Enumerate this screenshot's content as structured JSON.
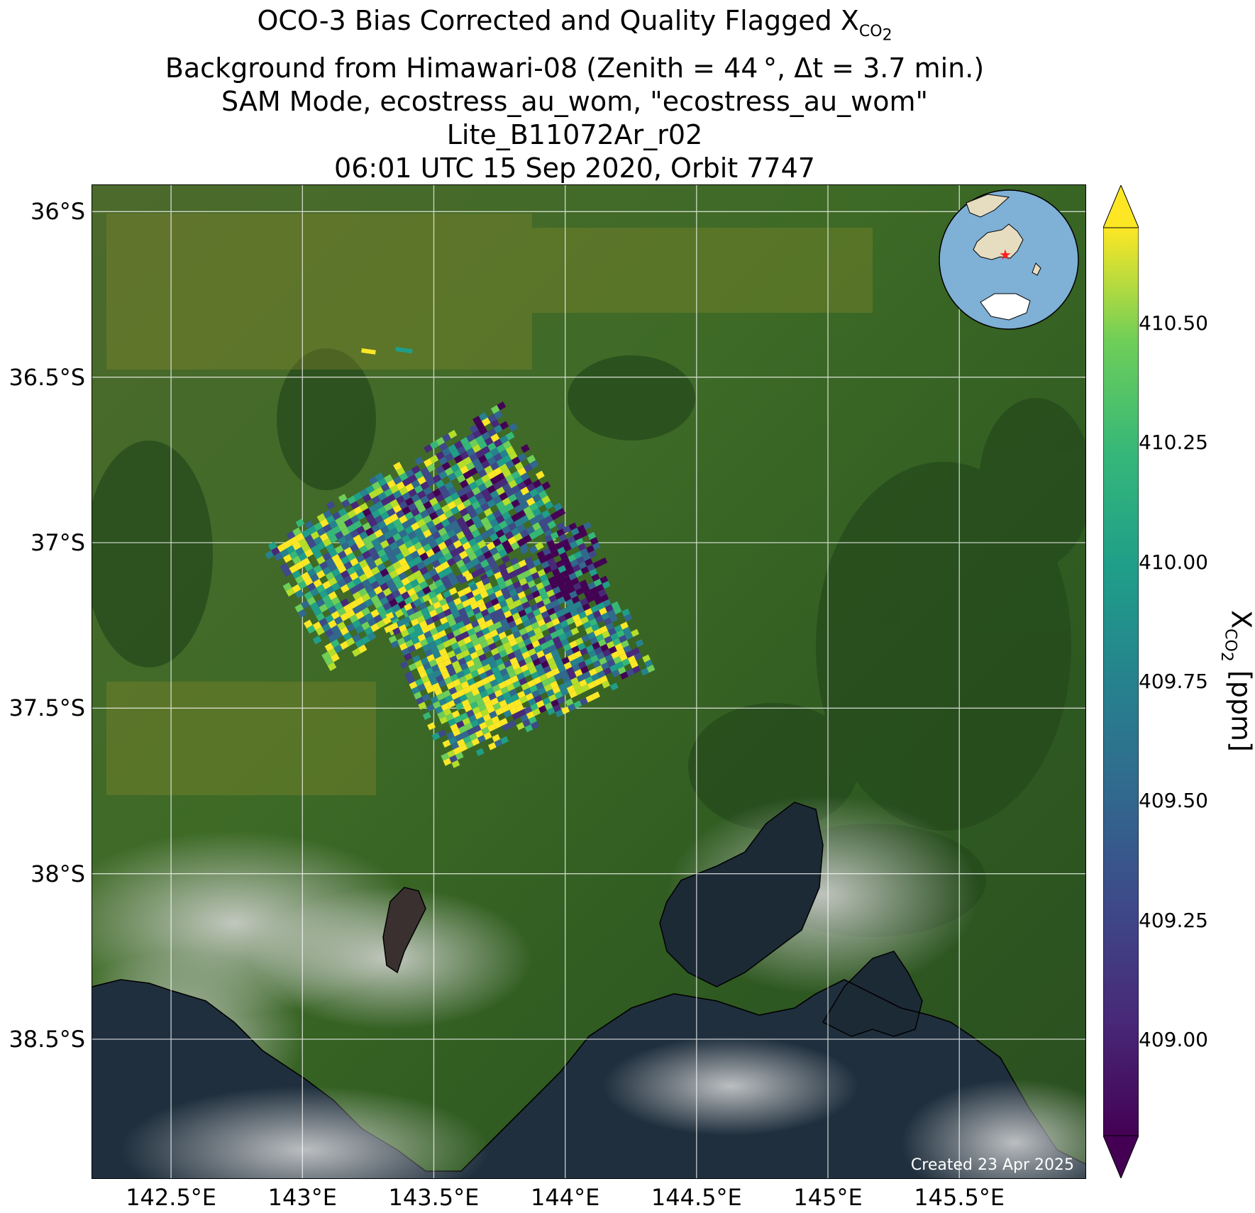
{
  "title": {
    "line1_main": "OCO-3 Bias Corrected and Quality Flagged X",
    "line1_sub": "CO",
    "line1_sub2": "2",
    "line2": "Background from Himawari-08 (Zenith = 44 °, Δt =  3.7 min.)",
    "line3": "SAM Mode, ecostress_au_wom, \"ecostress_au_wom\"",
    "line4": "Lite_B11072Ar_r02",
    "line5": "06:01 UTC 15 Sep 2020, Orbit 7747"
  },
  "map": {
    "lon_range": [
      142.2,
      145.98
    ],
    "lat_range": [
      -38.92,
      -35.92
    ],
    "lon_ticks": [
      "142.5°E",
      "143°E",
      "143.5°E",
      "144°E",
      "144.5°E",
      "145°E",
      "145.5°E"
    ],
    "lon_tick_values": [
      142.5,
      143.0,
      143.5,
      144.0,
      144.5,
      145.0,
      145.5
    ],
    "lat_ticks": [
      "36°S",
      "36.5°S",
      "37°S",
      "37.5°S",
      "38°S",
      "38.5°S"
    ],
    "lat_tick_values": [
      -36.0,
      -36.5,
      -37.0,
      -37.5,
      -38.0,
      -38.5
    ],
    "gridlines": true,
    "background": "satellite imagery (Himawari-08)",
    "colors": {
      "land": "#3f6b2b",
      "ocean": "#1f2f3f",
      "cloud": "#c8c8c8",
      "coast": "#000000"
    }
  },
  "inset_globe": {
    "marker_color": "#ff2020",
    "ocean_color": "#7fb0d6",
    "land_color": "#e6dcc0"
  },
  "footer": {
    "created": "Created 23 Apr 2025"
  },
  "colorbar": {
    "label_main": "X",
    "label_sub": "CO",
    "label_sub2": "2",
    "label_unit": " [ppm]",
    "vmin": 408.8,
    "vmax": 410.7,
    "ticks": [
      "410.50",
      "410.25",
      "410.00",
      "409.75",
      "409.50",
      "409.25",
      "409.00"
    ],
    "tick_values": [
      410.5,
      410.25,
      410.0,
      409.75,
      409.5,
      409.25,
      409.0
    ],
    "extend": "both",
    "colormap": "viridis"
  },
  "chart_data": {
    "type": "heatmap",
    "title": "OCO-3 Bias Corrected and Quality Flagged XCO2",
    "xlabel": "",
    "ylabel": "",
    "colorbar_label": "XCO2 [ppm]",
    "value_range": [
      408.8,
      410.7
    ],
    "swaths": [
      {
        "lon_min": 142.9,
        "lon_max": 144.5,
        "lat_min": -37.5,
        "lat_max": -36.8
      },
      {
        "lon_min": 143.4,
        "lon_max": 144.5,
        "lat_min": -37.85,
        "lat_max": -37.25
      }
    ]
  }
}
